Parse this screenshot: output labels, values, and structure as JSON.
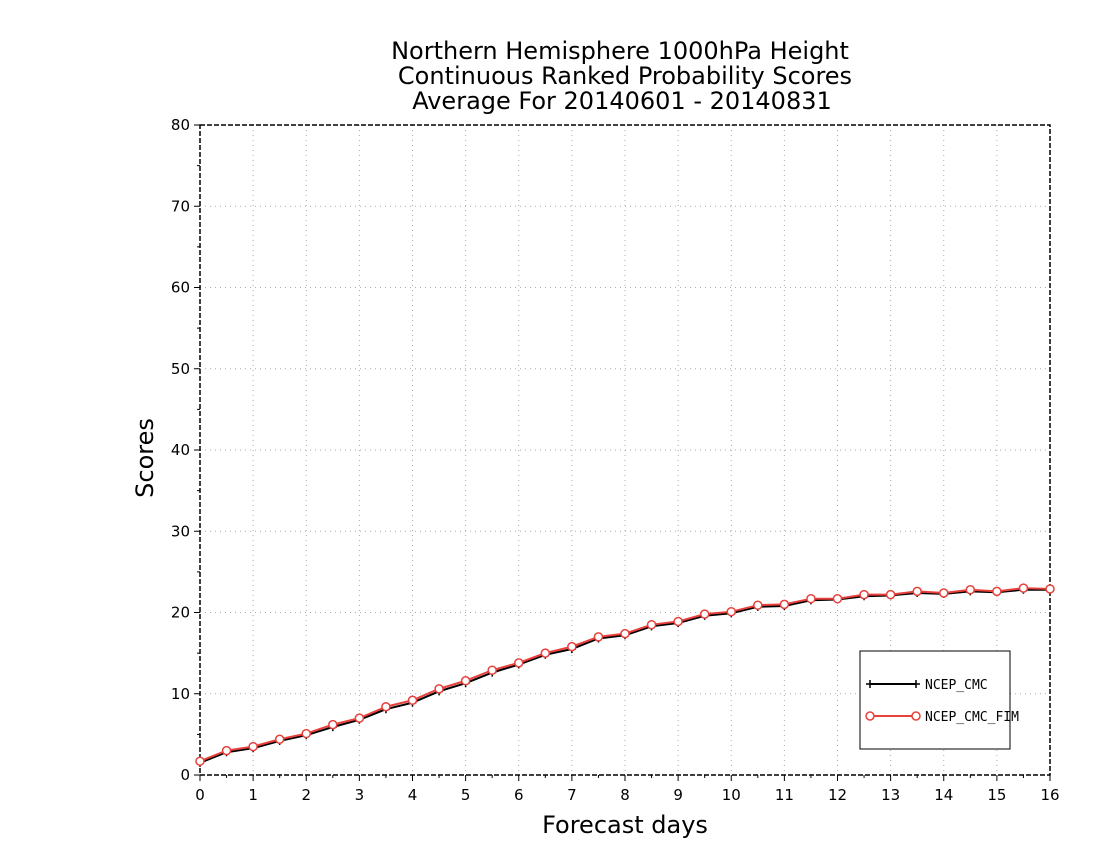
{
  "chart_data": {
    "type": "line",
    "title": [
      "Northern Hemisphere 1000hPa Height",
      "Continuous Ranked Probability Scores",
      "Average For 20140601 - 20140831"
    ],
    "xlabel": "Forecast days",
    "ylabel": "Scores",
    "xlim": [
      0,
      16
    ],
    "ylim": [
      0,
      80
    ],
    "xticks": [
      "0",
      "1",
      "2",
      "3",
      "4",
      "5",
      "6",
      "7",
      "8",
      "9",
      "10",
      "11",
      "12",
      "13",
      "14",
      "15",
      "16"
    ],
    "yticks": [
      "0",
      "10",
      "20",
      "30",
      "40",
      "50",
      "60",
      "70",
      "80"
    ],
    "grid": true,
    "legend_position": "bottom-right",
    "x": [
      0,
      0.5,
      1,
      1.5,
      2,
      2.5,
      3,
      3.5,
      4,
      4.5,
      5,
      5.5,
      6,
      6.5,
      7,
      7.5,
      8,
      8.5,
      9,
      9.5,
      10,
      10.5,
      11,
      11.5,
      12,
      12.5,
      13,
      13.5,
      14,
      14.5,
      15,
      15.5,
      16
    ],
    "series": [
      {
        "name": "NCEP_CMC",
        "color": "#000000",
        "marker": "plus",
        "values": [
          1.5,
          2.8,
          3.3,
          4.2,
          4.9,
          5.9,
          6.8,
          8.1,
          8.9,
          10.3,
          11.3,
          12.6,
          13.6,
          14.8,
          15.5,
          16.8,
          17.2,
          18.3,
          18.7,
          19.6,
          19.9,
          20.7,
          20.8,
          21.5,
          21.6,
          22.0,
          22.1,
          22.4,
          22.3,
          22.6,
          22.5,
          22.8,
          22.8
        ]
      },
      {
        "name": "NCEP_CMC_FIM",
        "color": "#e8403a",
        "marker": "circle",
        "values": [
          1.7,
          3.0,
          3.5,
          4.4,
          5.1,
          6.2,
          7.0,
          8.4,
          9.2,
          10.6,
          11.6,
          12.9,
          13.8,
          15.0,
          15.8,
          17.0,
          17.4,
          18.5,
          18.9,
          19.8,
          20.1,
          20.9,
          21.0,
          21.7,
          21.7,
          22.2,
          22.2,
          22.6,
          22.4,
          22.8,
          22.6,
          23.0,
          22.9
        ]
      }
    ]
  }
}
